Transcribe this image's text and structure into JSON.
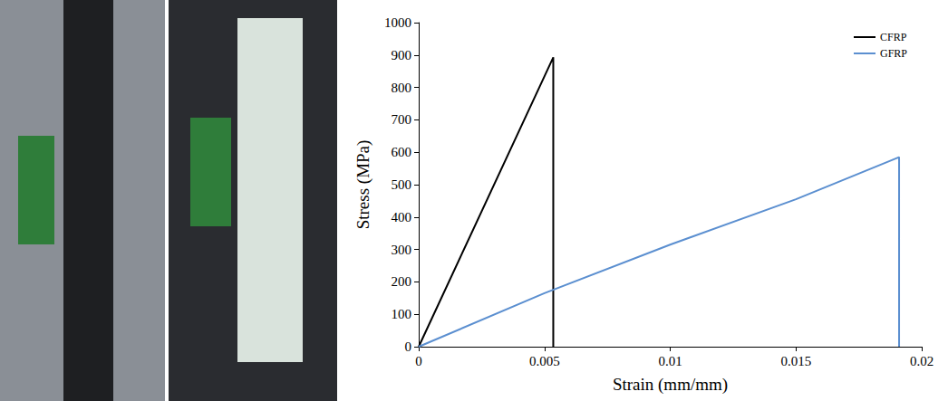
{
  "chart_data": {
    "type": "line",
    "x_label": "Strain (mm/mm)",
    "y_label": "Stress (MPa)",
    "xlim": [
      0,
      0.02
    ],
    "xticks": [
      0,
      0.005,
      0.01,
      0.015,
      0.02
    ],
    "ylim": [
      0,
      1000
    ],
    "yticks": [
      0,
      100,
      200,
      300,
      400,
      500,
      600,
      700,
      800,
      900,
      1000
    ],
    "grid": false,
    "legend": "upper right",
    "series": [
      {
        "name": "CFRP",
        "color": "#000000",
        "line_style": "solid",
        "x": [
          0,
          0.00535,
          0.00535
        ],
        "values": [
          0,
          893,
          0
        ]
      },
      {
        "name": "GFRP",
        "color": "#5b8fd0",
        "line_style": "solid",
        "x": [
          0,
          0.005,
          0.01,
          0.015,
          0.0191,
          0.0191
        ],
        "values": [
          0,
          165,
          315,
          455,
          585,
          0
        ]
      }
    ]
  }
}
